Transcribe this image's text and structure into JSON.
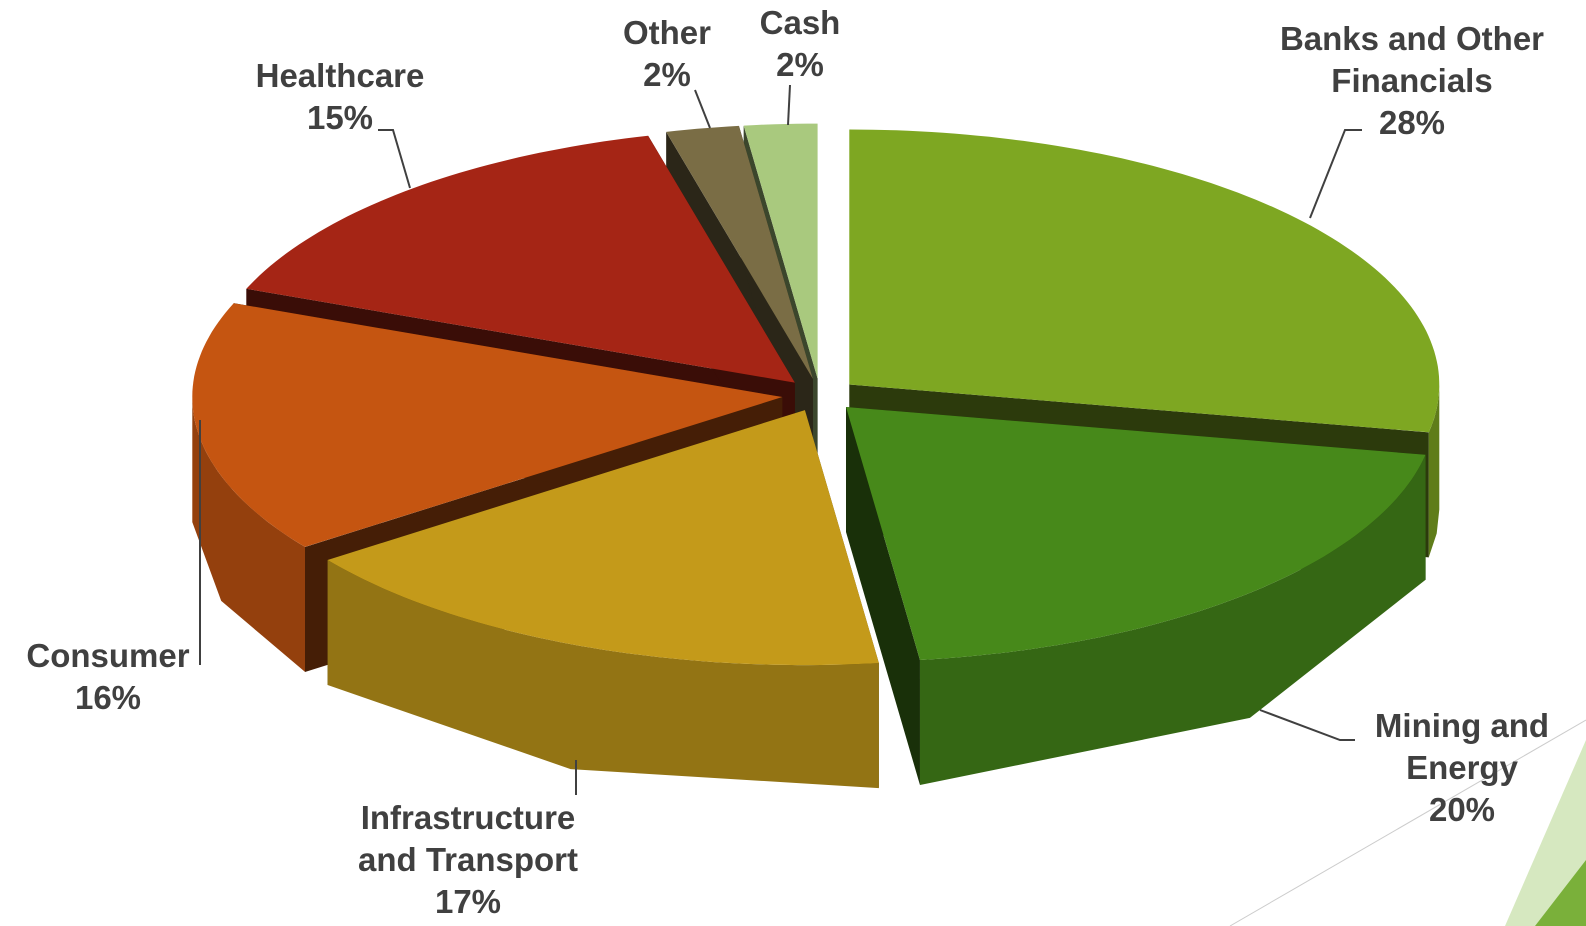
{
  "chart_data": {
    "type": "pie3d",
    "categories": [
      "Banks and Other Financials",
      "Mining and Energy",
      "Infrastructure and Transport",
      "Consumer",
      "Healthcare",
      "Other",
      "Cash"
    ],
    "values": [
      28,
      20,
      17,
      16,
      15,
      2,
      2
    ],
    "value_labels": [
      "28%",
      "20%",
      "17%",
      "16%",
      "15%",
      "2%",
      "2%"
    ],
    "colors": [
      "#7ea722",
      "#47891a",
      "#c49a1a",
      "#c55511",
      "#a52515",
      "#7a6d45",
      "#a9c97e"
    ]
  }
}
